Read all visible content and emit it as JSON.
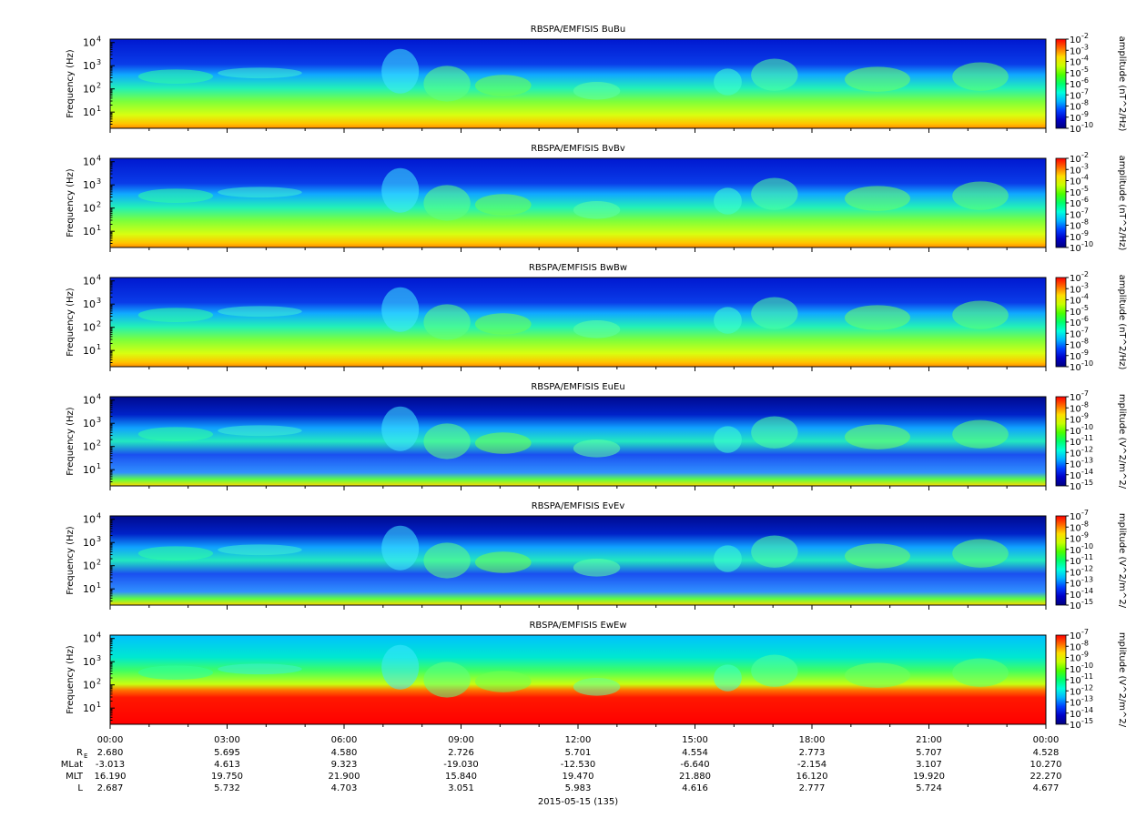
{
  "chart_data": [
    {
      "type": "heatmap",
      "title": "RBSPA/EMFISIS  BuBu",
      "ylabel": "Frequency (Hz)",
      "y_scale": "log",
      "yticks": [
        "10",
        "10",
        "10",
        "10"
      ],
      "ytick_exponents": [
        "1",
        "2",
        "3",
        "4"
      ],
      "colorbar": {
        "label": "amplitude (nT^2/Hz)",
        "scale": "log",
        "tick_bases": [
          "10",
          "10",
          "10",
          "10",
          "10",
          "10",
          "10",
          "10",
          "10"
        ],
        "tick_exponents": [
          "-2",
          "-3",
          "-4",
          "-5",
          "-6",
          "-7",
          "-8",
          "-9",
          "-10"
        ]
      }
    },
    {
      "type": "heatmap",
      "title": "RBSPA/EMFISIS  BvBv",
      "ylabel": "Frequency (Hz)",
      "y_scale": "log",
      "yticks": [
        "10",
        "10",
        "10",
        "10"
      ],
      "ytick_exponents": [
        "1",
        "2",
        "3",
        "4"
      ],
      "colorbar": {
        "label": "amplitude (nT^2/Hz)",
        "scale": "log",
        "tick_bases": [
          "10",
          "10",
          "10",
          "10",
          "10",
          "10",
          "10",
          "10",
          "10"
        ],
        "tick_exponents": [
          "-2",
          "-3",
          "-4",
          "-5",
          "-6",
          "-7",
          "-8",
          "-9",
          "-10"
        ]
      }
    },
    {
      "type": "heatmap",
      "title": "RBSPA/EMFISIS  BwBw",
      "ylabel": "Frequency (Hz)",
      "y_scale": "log",
      "yticks": [
        "10",
        "10",
        "10",
        "10"
      ],
      "ytick_exponents": [
        "1",
        "2",
        "3",
        "4"
      ],
      "colorbar": {
        "label": "amplitude (nT^2/Hz)",
        "scale": "log",
        "tick_bases": [
          "10",
          "10",
          "10",
          "10",
          "10",
          "10",
          "10",
          "10",
          "10"
        ],
        "tick_exponents": [
          "-2",
          "-3",
          "-4",
          "-5",
          "-6",
          "-7",
          "-8",
          "-9",
          "-10"
        ]
      }
    },
    {
      "type": "heatmap",
      "title": "RBSPA/EMFISIS  EuEu",
      "ylabel": "Frequency (Hz)",
      "y_scale": "log",
      "yticks": [
        "10",
        "10",
        "10",
        "10"
      ],
      "ytick_exponents": [
        "1",
        "2",
        "3",
        "4"
      ],
      "colorbar": {
        "label": "mplitude (V^2/m^2/",
        "scale": "log",
        "tick_bases": [
          "10",
          "10",
          "10",
          "10",
          "10",
          "10",
          "10",
          "10",
          "10"
        ],
        "tick_exponents": [
          "-7",
          "-8",
          "-9",
          "-10",
          "-11",
          "-12",
          "-13",
          "-14",
          "-15"
        ]
      }
    },
    {
      "type": "heatmap",
      "title": "RBSPA/EMFISIS  EvEv",
      "ylabel": "Frequency (Hz)",
      "y_scale": "log",
      "yticks": [
        "10",
        "10",
        "10",
        "10"
      ],
      "ytick_exponents": [
        "1",
        "2",
        "3",
        "4"
      ],
      "colorbar": {
        "label": "mplitude (V^2/m^2/",
        "scale": "log",
        "tick_bases": [
          "10",
          "10",
          "10",
          "10",
          "10",
          "10",
          "10",
          "10",
          "10"
        ],
        "tick_exponents": [
          "-7",
          "-8",
          "-9",
          "-10",
          "-11",
          "-12",
          "-13",
          "-14",
          "-15"
        ]
      }
    },
    {
      "type": "heatmap",
      "title": "RBSPA/EMFISIS  EwEw",
      "ylabel": "Frequency (Hz)",
      "y_scale": "log",
      "yticks": [
        "10",
        "10",
        "10",
        "10"
      ],
      "ytick_exponents": [
        "1",
        "2",
        "3",
        "4"
      ],
      "colorbar": {
        "label": "mplitude (V^2/m^2/",
        "scale": "log",
        "tick_bases": [
          "10",
          "10",
          "10",
          "10",
          "10",
          "10",
          "10",
          "10",
          "10"
        ],
        "tick_exponents": [
          "-7",
          "-8",
          "-9",
          "-10",
          "-11",
          "-12",
          "-13",
          "-14",
          "-15"
        ]
      }
    }
  ],
  "x_axis": {
    "date_label": "2015-05-15 (135)",
    "tick_labels": [
      "00:00",
      "03:00",
      "06:00",
      "09:00",
      "12:00",
      "15:00",
      "18:00",
      "21:00",
      "00:00"
    ],
    "ephemeris": [
      {
        "label": "R",
        "subscript": "E",
        "values": [
          "2.680",
          "5.695",
          "4.580",
          "2.726",
          "5.701",
          "4.554",
          "2.773",
          "5.707",
          "4.528"
        ]
      },
      {
        "label": "MLat",
        "values": [
          "-3.013",
          "4.613",
          "9.323",
          "-19.030",
          "-12.530",
          "-6.640",
          "-2.154",
          "3.107",
          "10.270"
        ]
      },
      {
        "label": "MLT",
        "values": [
          "16.190",
          "19.750",
          "21.900",
          "15.840",
          "19.470",
          "21.880",
          "16.120",
          "19.920",
          "22.270"
        ]
      },
      {
        "label": "L",
        "values": [
          "2.687",
          "5.732",
          "4.703",
          "3.051",
          "5.983",
          "4.616",
          "2.777",
          "5.724",
          "4.677"
        ]
      }
    ]
  },
  "colormap": [
    "#ff0000",
    "#ff6a00",
    "#ffdd00",
    "#c8ff00",
    "#4cff00",
    "#00ff6a",
    "#00ffdd",
    "#00b4ff",
    "#0040ff",
    "#0000c8",
    "#000080"
  ]
}
